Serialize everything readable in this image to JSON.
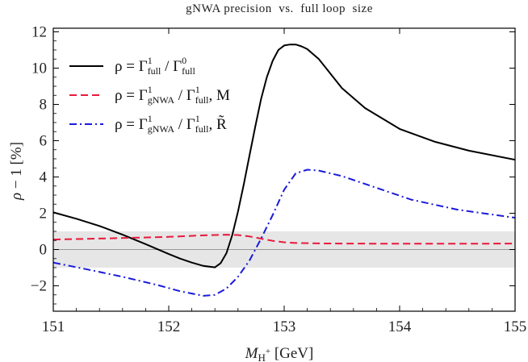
{
  "chart_data": {
    "type": "line",
    "title": "gNWA precision  vs.  full loop  size",
    "xlabel": "M_H+ [GeV]",
    "ylabel": "ρ − 1  [%]",
    "xlim": [
      151,
      155
    ],
    "ylim": [
      -3.4,
      12.2
    ],
    "xticks": [
      151,
      152,
      153,
      154,
      155
    ],
    "yticks": [
      -2,
      0,
      2,
      4,
      6,
      8,
      10,
      12
    ],
    "xtick_labels": [
      "151",
      "152",
      "153",
      "154",
      "155"
    ],
    "ytick_labels": [
      "−2",
      "0",
      "2",
      "4",
      "6",
      "8",
      "10",
      "12"
    ],
    "band": {
      "y_min": -1,
      "y_max": 1,
      "color": "#e6e6e6"
    },
    "zero_line_color": "#999999",
    "legend_placement": "top-left",
    "series": [
      {
        "name": "ρ = Γ¹full / Γ⁰full",
        "legend_parts": [
          "ρ = Γ",
          "1",
          "full",
          " / Γ",
          "0",
          "full"
        ],
        "color": "#000000",
        "dash": "solid",
        "x": [
          151.0,
          151.2,
          151.4,
          151.6,
          151.8,
          152.0,
          152.1,
          152.2,
          152.3,
          152.4,
          152.45,
          152.5,
          152.55,
          152.6,
          152.65,
          152.7,
          152.75,
          152.8,
          152.85,
          152.9,
          152.95,
          153.0,
          153.05,
          153.1,
          153.15,
          153.2,
          153.3,
          153.4,
          153.5,
          153.7,
          154.0,
          154.3,
          154.6,
          155.0
        ],
        "y": [
          2.05,
          1.7,
          1.3,
          0.82,
          0.3,
          -0.25,
          -0.5,
          -0.72,
          -0.9,
          -0.98,
          -0.75,
          -0.2,
          0.8,
          2.1,
          3.6,
          5.2,
          6.8,
          8.3,
          9.5,
          10.4,
          11.0,
          11.25,
          11.3,
          11.3,
          11.2,
          11.05,
          10.5,
          9.7,
          8.9,
          7.8,
          6.65,
          5.95,
          5.45,
          4.95
        ]
      },
      {
        "name": "ρ = Γ¹gNWA / Γ¹full , M",
        "legend_parts": [
          "ρ = Γ",
          "1",
          "gNWA",
          " / Γ",
          "1",
          "full",
          ",  M"
        ],
        "color": "#e8193c",
        "dash": "dashed",
        "x": [
          151.0,
          151.5,
          152.0,
          152.3,
          152.5,
          152.6,
          152.7,
          152.8,
          152.9,
          153.0,
          153.1,
          153.3,
          153.5,
          154.0,
          154.5,
          155.0
        ],
        "y": [
          0.55,
          0.62,
          0.7,
          0.78,
          0.82,
          0.8,
          0.72,
          0.6,
          0.48,
          0.4,
          0.36,
          0.34,
          0.33,
          0.32,
          0.32,
          0.33
        ]
      },
      {
        "name": "ρ = Γ¹gNWA / Γ¹full , R̃",
        "legend_parts": [
          "ρ = Γ",
          "1",
          "gNWA",
          " / Γ",
          "1",
          "full",
          ",  R̃"
        ],
        "color": "#1a1adc",
        "dash": "dashdot",
        "x": [
          151.0,
          151.3,
          151.6,
          151.9,
          152.1,
          152.3,
          152.4,
          152.5,
          152.6,
          152.7,
          152.8,
          152.9,
          153.0,
          153.1,
          153.2,
          153.3,
          153.5,
          153.8,
          154.1,
          154.5,
          155.0
        ],
        "y": [
          -0.72,
          -1.1,
          -1.5,
          -1.95,
          -2.3,
          -2.55,
          -2.5,
          -2.15,
          -1.5,
          -0.6,
          0.6,
          1.9,
          3.3,
          4.2,
          4.4,
          4.35,
          4.05,
          3.4,
          2.75,
          2.2,
          1.75
        ]
      }
    ]
  }
}
